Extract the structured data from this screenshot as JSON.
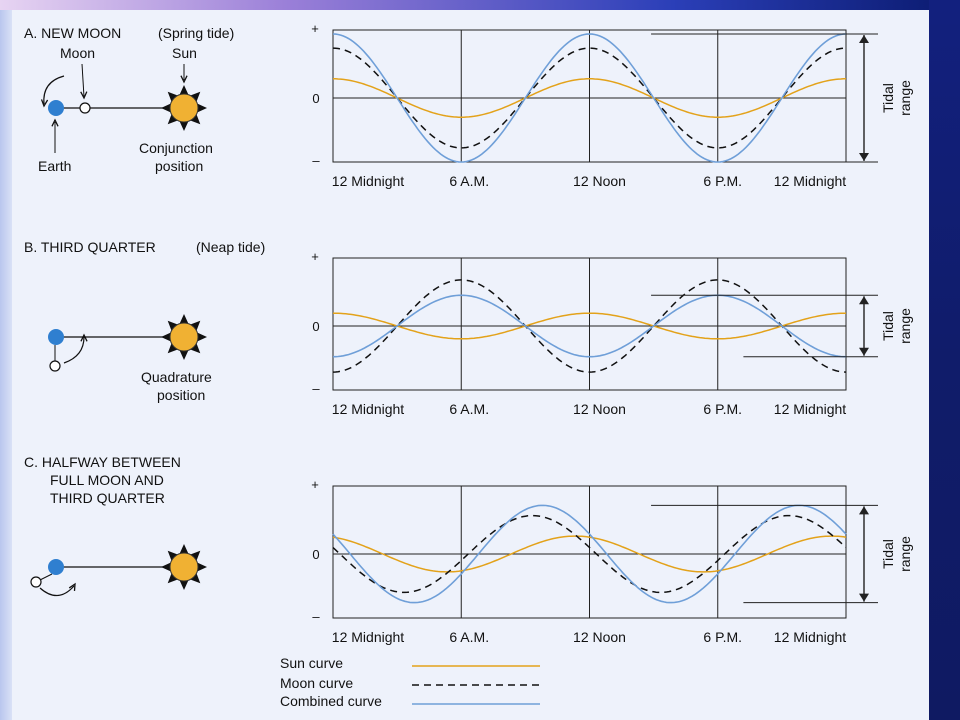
{
  "panels": [
    {
      "title": "A.  NEW MOON",
      "subtitle": "(Spring tide)",
      "labels": {
        "moon": "Moon",
        "sun": "Sun",
        "earth": "Earth",
        "position_line1": "Conjunction",
        "position_line2": "position"
      }
    },
    {
      "title": "B.  THIRD QUARTER",
      "subtitle": "(Neap tide)",
      "labels": {
        "position_line1": "Quadrature",
        "position_line2": "position"
      }
    },
    {
      "title_line1": "C.  HALFWAY BETWEEN",
      "title_line2": "FULL MOON AND",
      "title_line3": "THIRD QUARTER"
    }
  ],
  "axis": {
    "plus": "+",
    "zero": "0",
    "minus": "–",
    "ticks": [
      "12 Midnight",
      "6 A.M.",
      "12 Noon",
      "6 P.M.",
      "12 Midnight"
    ]
  },
  "range_label_line1": "Tidal",
  "range_label_line2": "range",
  "legend": {
    "sun": "Sun curve",
    "moon": "Moon  curve",
    "combined": "Combined curve"
  },
  "colors": {
    "sun_curve": "#e3a21a",
    "moon_curve": "#111111",
    "combined_curve": "#6f9fd8",
    "earth": "#2f7fd0",
    "sun_fill": "#f0b133"
  }
}
